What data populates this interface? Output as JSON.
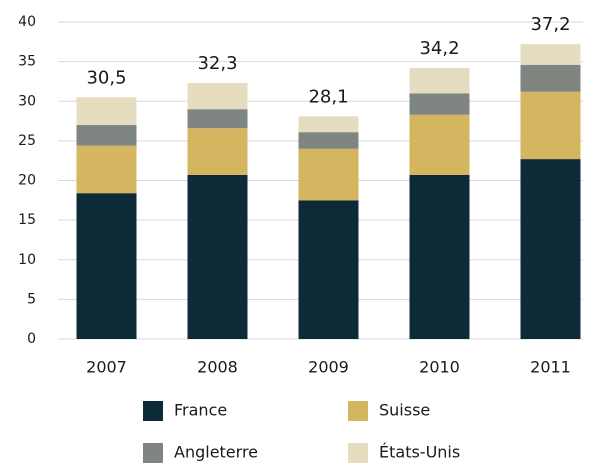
{
  "chart_data": {
    "type": "stacked_bar",
    "categories": [
      "2007",
      "2008",
      "2009",
      "2010",
      "2011"
    ],
    "series": [
      {
        "name": "France",
        "color": "#0d2a38",
        "values": [
          18.4,
          20.7,
          17.5,
          20.7,
          22.7
        ]
      },
      {
        "name": "Suisse",
        "color": "#d4b660",
        "values": [
          6.0,
          5.9,
          6.5,
          7.6,
          8.5
        ]
      },
      {
        "name": "Angleterre",
        "color": "#7f8580",
        "values": [
          2.6,
          2.4,
          2.1,
          2.7,
          3.4
        ]
      },
      {
        "name": "États-Unis",
        "color": "#e6dcc0",
        "values": [
          3.5,
          3.3,
          2.0,
          3.2,
          2.6
        ]
      }
    ],
    "totals": [
      30.5,
      32.3,
      28.1,
      34.2,
      37.2
    ],
    "total_labels": [
      "30,5",
      "32,3",
      "28,1",
      "34,2",
      "37,2"
    ],
    "ylim": [
      0,
      40
    ],
    "yticks": [
      0,
      5,
      10,
      15,
      20,
      25,
      30,
      35,
      40
    ],
    "grid": true
  }
}
